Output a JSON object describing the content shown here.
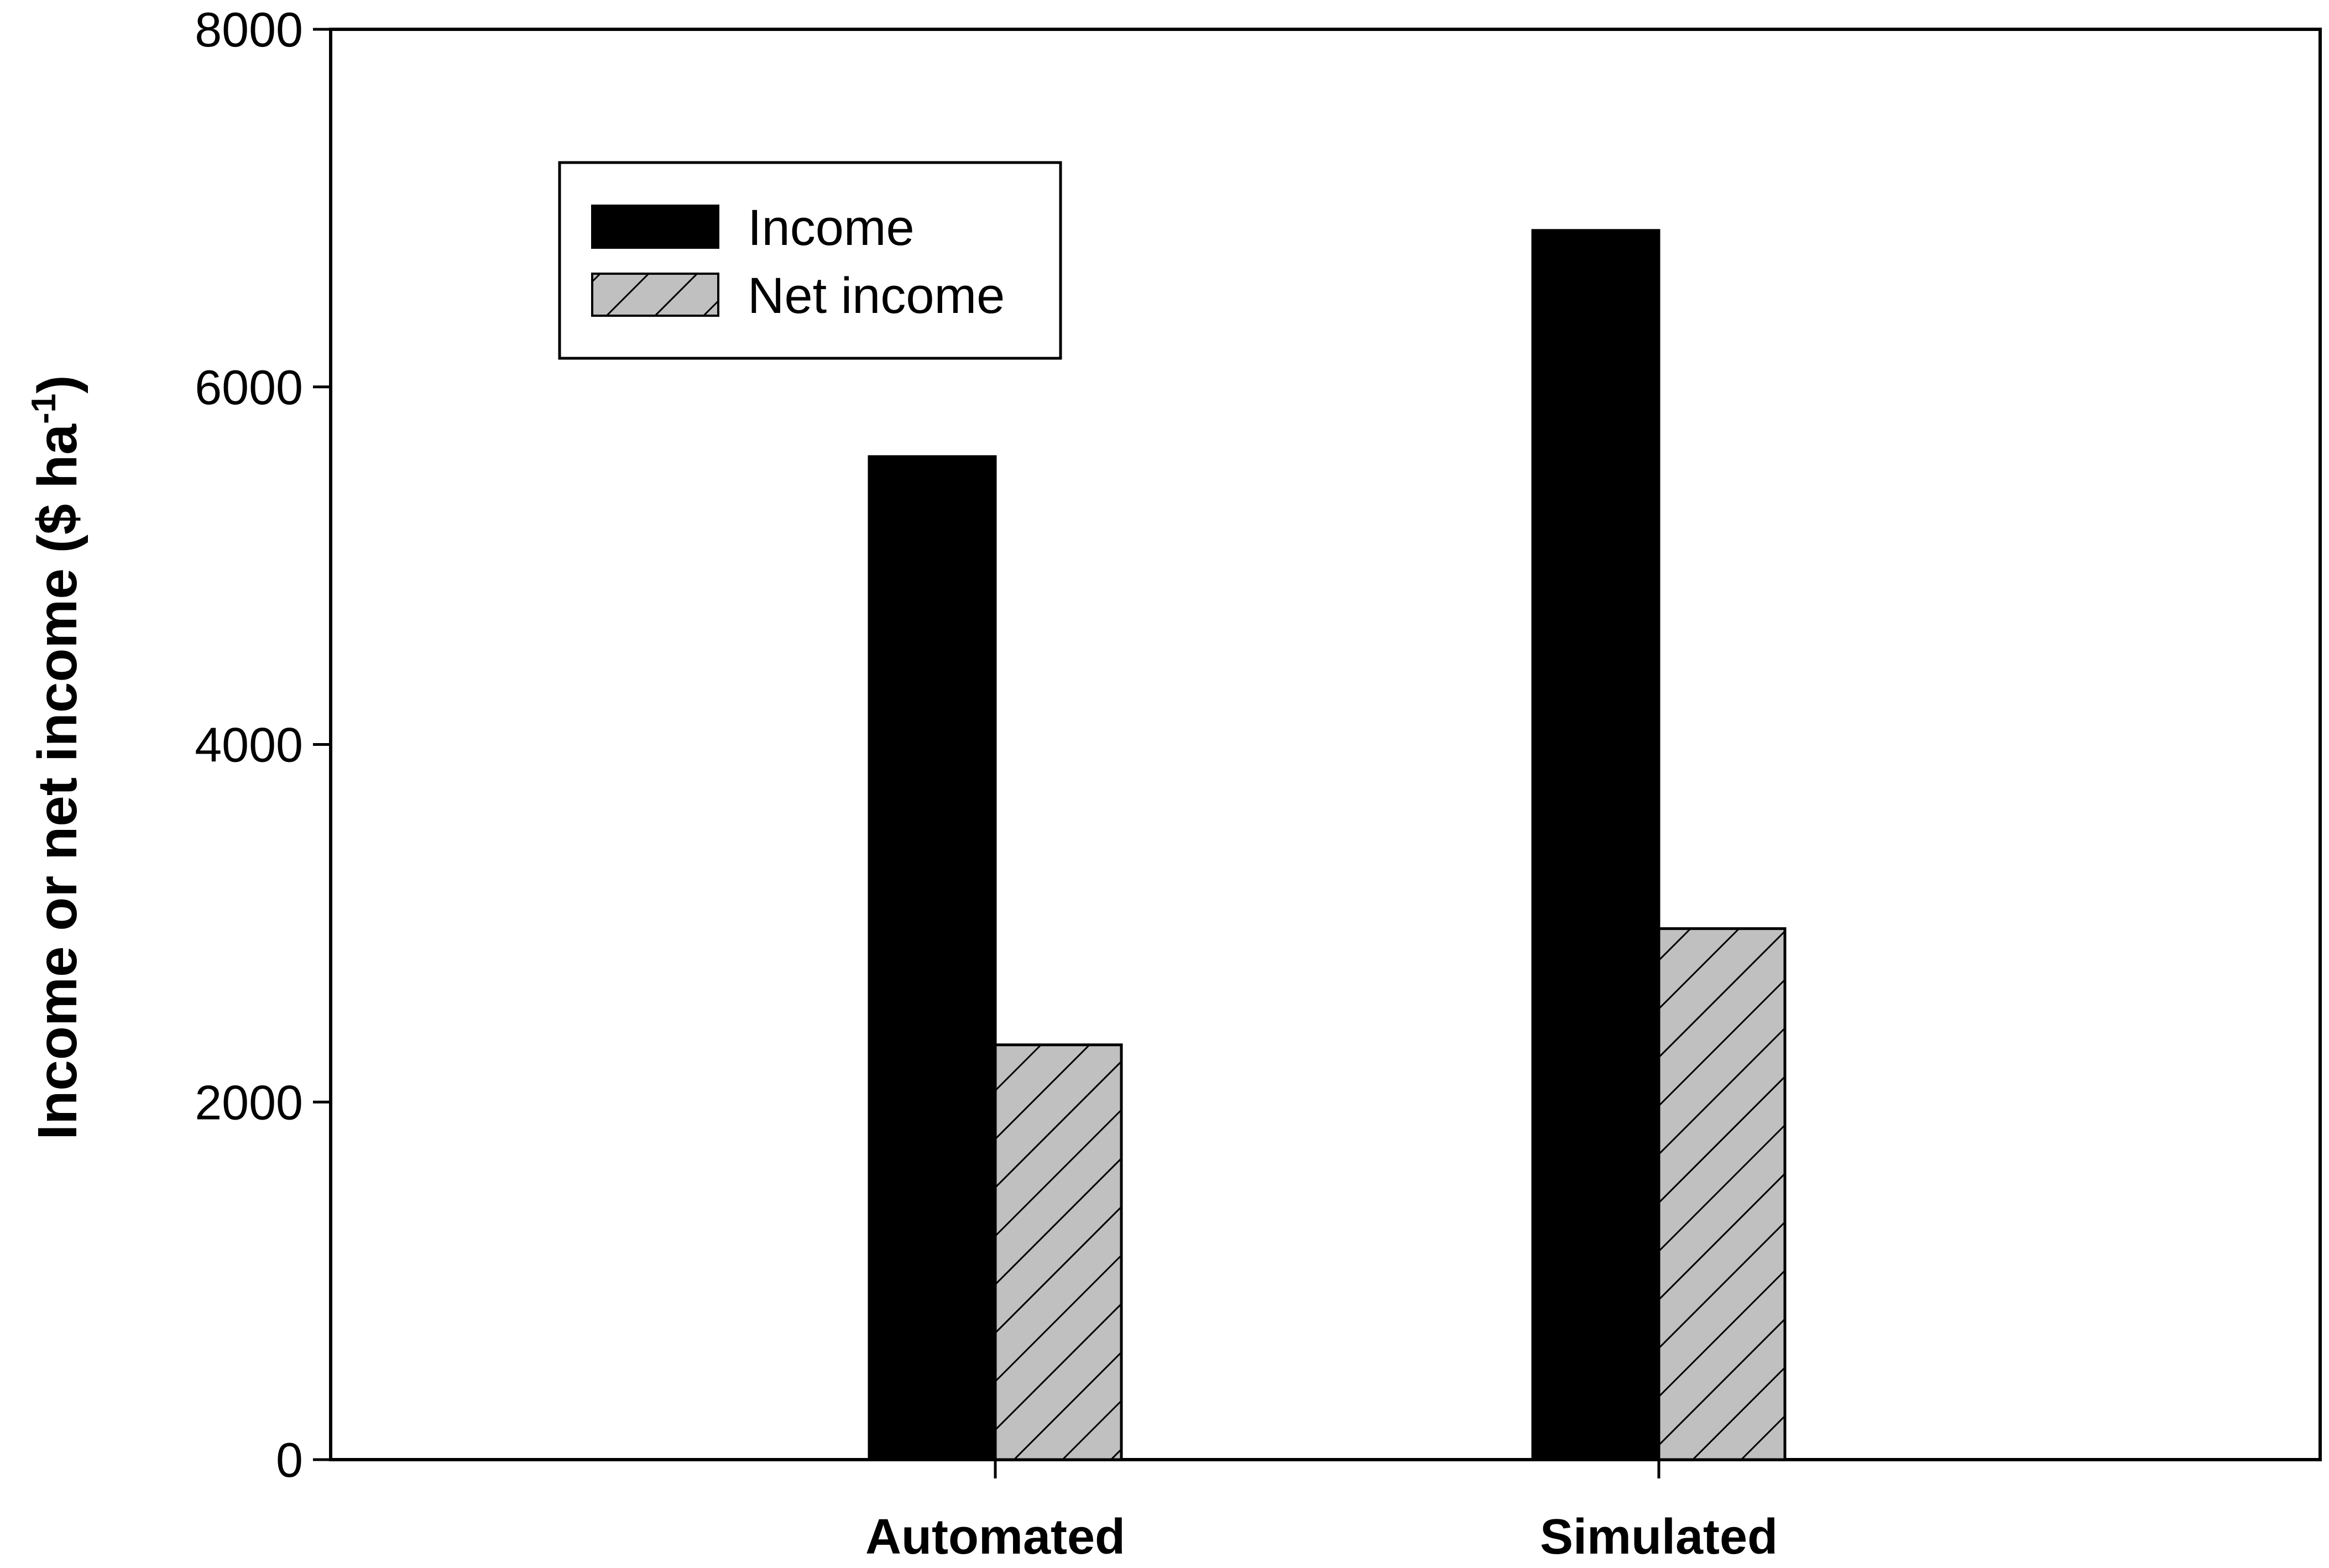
{
  "chart_data": {
    "type": "bar",
    "categories": [
      "Automated",
      "Simulated"
    ],
    "series": [
      {
        "name": "Income",
        "values": [
          5610,
          6875
        ],
        "color": "#000000",
        "pattern": "solid"
      },
      {
        "name": "Net income",
        "values": [
          2320,
          2970
        ],
        "color": "#c0c0c0",
        "pattern": "diagonal-hatch"
      }
    ],
    "xlabel": "",
    "ylabel": {
      "main": "Income or net income ($ ha",
      "superscript": "-1",
      "end": ")"
    },
    "ylim": [
      0,
      8000
    ],
    "yticks": [
      "0",
      "2000",
      "4000",
      "6000",
      "8000"
    ],
    "grid": false,
    "legend_position": "top-left"
  }
}
